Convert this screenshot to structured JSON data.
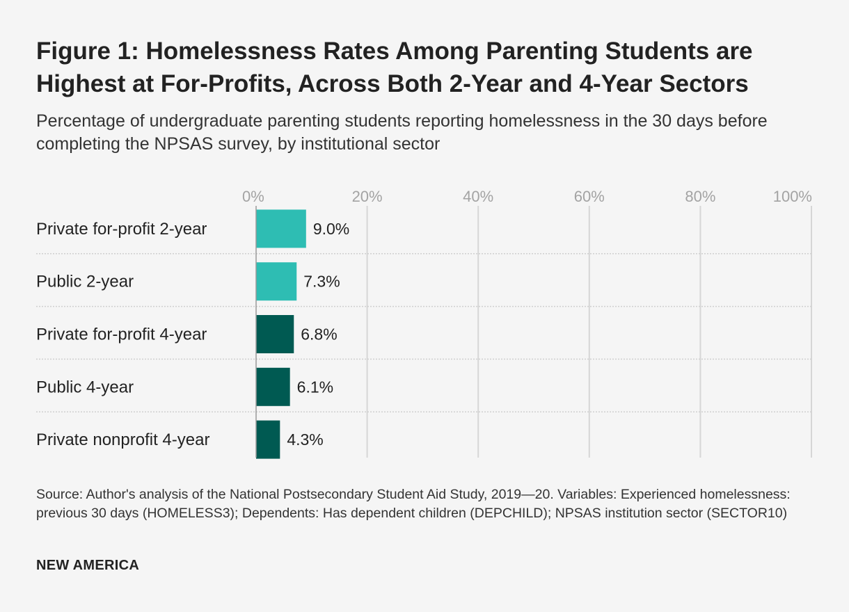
{
  "chart_data": {
    "type": "bar",
    "orientation": "horizontal",
    "title": "Figure 1: Homelessness Rates Among Parenting Students are Highest at For-Profits, Across Both 2-Year and 4-Year Sectors",
    "subtitle": "Percentage of undergraduate parenting students reporting homelessness in the 30 days before completing the NPSAS survey, by institutional sector",
    "categories": [
      "Private for-profit 2-year",
      "Public 2-year",
      "Private for-profit 4-year",
      "Public 4-year",
      "Private nonprofit 4-year"
    ],
    "values": [
      9.0,
      7.3,
      6.8,
      6.1,
      4.3
    ],
    "value_labels": [
      "9.0%",
      "7.3%",
      "6.8%",
      "6.1%",
      "4.3%"
    ],
    "bar_colors": [
      "#2ebdb3",
      "#2ebdb3",
      "#005a52",
      "#005a52",
      "#005a52"
    ],
    "xlim": [
      0,
      100
    ],
    "x_ticks": [
      0,
      20,
      40,
      60,
      80,
      100
    ],
    "x_tick_labels": [
      "0%",
      "20%",
      "40%",
      "60%",
      "80%",
      "100%"
    ],
    "axis_position": "top",
    "grid": true,
    "xlabel": "",
    "ylabel": ""
  },
  "source": "Source: Author's analysis of the National Postsecondary Student Aid Study, 2019—20. Variables: Experienced homelessness: previous 30 days (HOMELESS3); Dependents: Has dependent children (DEPCHILD); NPSAS institution sector (SECTOR10)",
  "brand": "NEW AMERICA"
}
